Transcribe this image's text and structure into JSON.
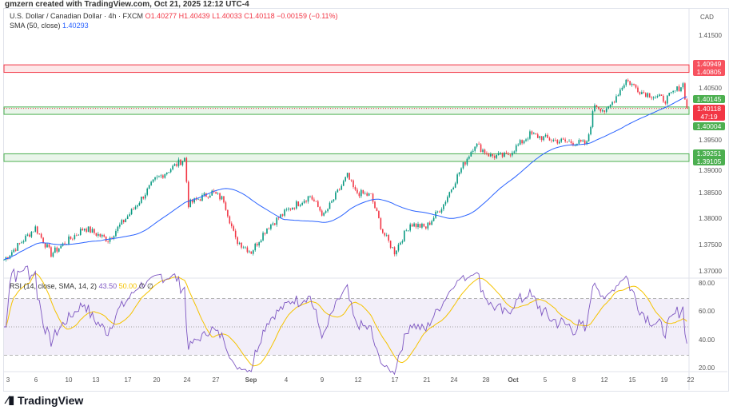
{
  "attribution": "gmzern created with TradingView.com, Oct 21, 2025 12:12 UTC-4",
  "legend": {
    "symbol": "U.S. Dollar / Canadian Dollar · 4h · FXCM",
    "o": "O1.40277",
    "h": "H1.40439",
    "l": "L1.40033",
    "c": "C1.40118",
    "chg": "−0.00159 (−0.11%)",
    "sma_label": "SMA (50, close)",
    "sma_value": "1.40293"
  },
  "rsi_legend": {
    "label": "RSI (14, close, SMA, 14, 2)",
    "rsi": "43.50",
    "sma": "50.00",
    "extra": "∅ ∅"
  },
  "currency": "CAD",
  "price_ticks": [
    "1.41500",
    "1.40500",
    "1.39500",
    "1.39000",
    "1.38500",
    "1.38000",
    "1.37500",
    "1.37000"
  ],
  "rsi_ticks": [
    "80.00",
    "60.00",
    "40.00",
    "20.00"
  ],
  "tags": {
    "r1": "1.40949",
    "r2": "1.40805",
    "g1": "1.40145",
    "cur": "1.40118",
    "countdown": "47:19",
    "g2": "1.40004",
    "g3": "1.39251",
    "g4": "1.39105"
  },
  "time_labels": [
    "3",
    "6",
    "10",
    "13",
    "17",
    "20",
    "24",
    "27",
    "Sep",
    "4",
    "9",
    "12",
    "17",
    "21",
    "24",
    "28",
    "Oct",
    "5",
    "8",
    "12",
    "15",
    "19",
    "22"
  ],
  "brand": "TradingView",
  "colors": {
    "up": "#089981",
    "down": "#f23645",
    "sma": "#2962ff",
    "rsi": "#7e57c2",
    "rsi_sma": "#f5c300"
  },
  "chart_data": {
    "type": "candlestick",
    "symbol": "USDCAD",
    "timeframe": "4h",
    "key_closes": [
      [
        0,
        1.3723
      ],
      [
        16,
        1.3784
      ],
      [
        24,
        1.3734
      ],
      [
        41,
        1.3784
      ],
      [
        53,
        1.3761
      ],
      [
        65,
        1.3815
      ],
      [
        77,
        1.3875
      ],
      [
        92,
        1.3916
      ],
      [
        94,
        1.3829
      ],
      [
        106,
        1.3852
      ],
      [
        112,
        1.3837
      ],
      [
        118,
        1.3761
      ],
      [
        126,
        1.3738
      ],
      [
        134,
        1.3784
      ],
      [
        146,
        1.3822
      ],
      [
        156,
        1.3845
      ],
      [
        163,
        1.3807
      ],
      [
        175,
        1.3883
      ],
      [
        179,
        1.3852
      ],
      [
        187,
        1.3845
      ],
      [
        193,
        1.3776
      ],
      [
        199,
        1.3738
      ],
      [
        207,
        1.3792
      ],
      [
        215,
        1.3784
      ],
      [
        224,
        1.3829
      ],
      [
        232,
        1.389
      ],
      [
        240,
        1.3944
      ],
      [
        248,
        1.3921
      ],
      [
        256,
        1.3921
      ],
      [
        268,
        1.3962
      ],
      [
        280,
        1.3951
      ],
      [
        297,
        1.3944
      ],
      [
        301,
        1.402
      ],
      [
        307,
        1.4005
      ],
      [
        317,
        1.4066
      ],
      [
        325,
        1.4043
      ],
      [
        337,
        1.4028
      ],
      [
        346,
        1.4058
      ],
      [
        348,
        1.4012
      ]
    ],
    "zones": [
      {
        "type": "resistance",
        "top": 1.40949,
        "bottom": 1.40805
      },
      {
        "type": "support",
        "top": 1.40145,
        "bottom": 1.40004
      },
      {
        "type": "support",
        "top": 1.39251,
        "bottom": 1.39105
      }
    ],
    "ylim": [
      1.368,
      1.418
    ],
    "rsi_levels": [
      70,
      50,
      30
    ]
  }
}
